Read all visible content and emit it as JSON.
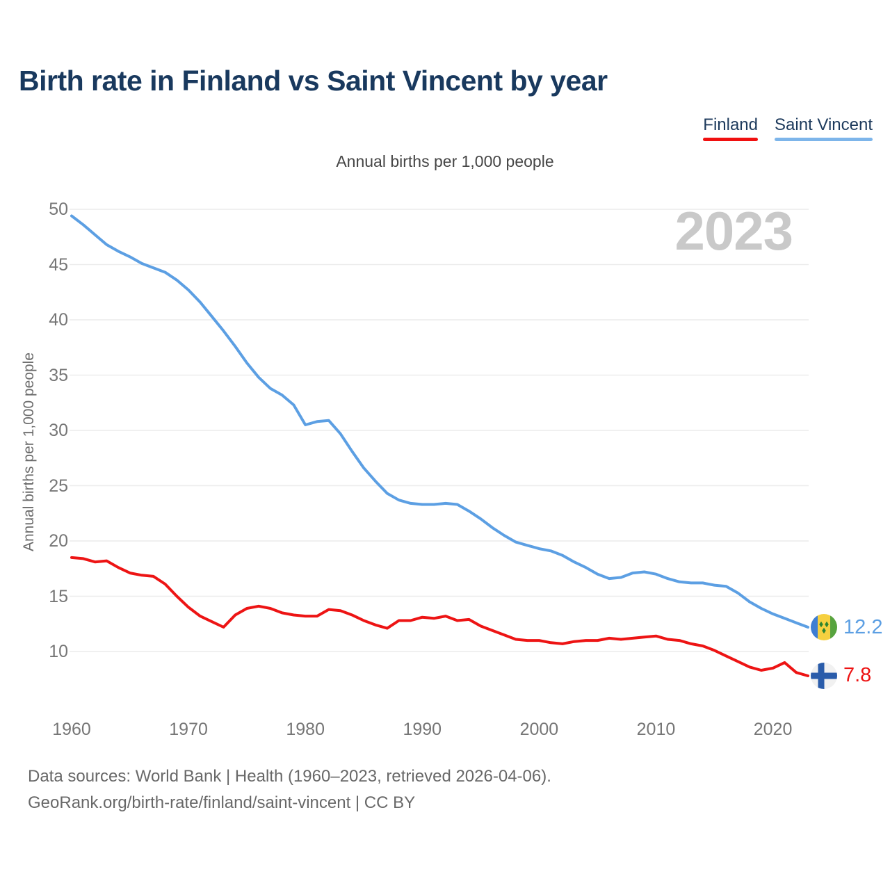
{
  "header": {
    "title": "Birth rate in Finland vs Saint Vincent by year",
    "legend": [
      {
        "label": "Finland",
        "color": "#f01010"
      },
      {
        "label": "Saint Vincent",
        "color": "#7db5ea"
      }
    ]
  },
  "watermark": "2023",
  "chart_data": {
    "type": "line",
    "title": "Annual births per 1,000 people",
    "ylabel": "Annual births per 1,000 people",
    "xlabel": "",
    "grid": "horizontal-only",
    "legend_position": "top-right",
    "ylim": [
      7.5,
      50
    ],
    "y_ticks": [
      10,
      15,
      20,
      25,
      30,
      35,
      40,
      45,
      50
    ],
    "x_ticks": [
      1960,
      1970,
      1980,
      1990,
      2000,
      2010,
      2020
    ],
    "x": [
      1960,
      1961,
      1962,
      1963,
      1964,
      1965,
      1966,
      1967,
      1968,
      1969,
      1970,
      1971,
      1972,
      1973,
      1974,
      1975,
      1976,
      1977,
      1978,
      1979,
      1980,
      1981,
      1982,
      1983,
      1984,
      1985,
      1986,
      1987,
      1988,
      1989,
      1990,
      1991,
      1992,
      1993,
      1994,
      1995,
      1996,
      1997,
      1998,
      1999,
      2000,
      2001,
      2002,
      2003,
      2004,
      2005,
      2006,
      2007,
      2008,
      2009,
      2010,
      2011,
      2012,
      2013,
      2014,
      2015,
      2016,
      2017,
      2018,
      2019,
      2020,
      2021,
      2022,
      2023
    ],
    "series": [
      {
        "name": "Saint Vincent",
        "color": "#5c9fe3",
        "end_label": "12.2",
        "flag_icon": "saint-vincent-flag-icon",
        "values": [
          49.4,
          48.6,
          47.7,
          46.8,
          46.2,
          45.7,
          45.1,
          44.7,
          44.3,
          43.6,
          42.7,
          41.6,
          40.3,
          39.0,
          37.6,
          36.1,
          34.8,
          33.8,
          33.2,
          32.3,
          30.5,
          30.8,
          30.9,
          29.7,
          28.1,
          26.6,
          25.4,
          24.3,
          23.7,
          23.4,
          23.3,
          23.3,
          23.4,
          23.3,
          22.7,
          22.0,
          21.2,
          20.5,
          19.9,
          19.6,
          19.3,
          19.1,
          18.7,
          18.1,
          17.6,
          17.0,
          16.6,
          16.7,
          17.1,
          17.2,
          17.0,
          16.6,
          16.3,
          16.2,
          16.2,
          16.0,
          15.9,
          15.3,
          14.5,
          13.9,
          13.4,
          13.0,
          12.6,
          12.2
        ]
      },
      {
        "name": "Finland",
        "color": "#ed1414",
        "end_label": "7.8",
        "flag_icon": "finland-flag-icon",
        "values": [
          18.5,
          18.4,
          18.1,
          18.2,
          17.6,
          17.1,
          16.9,
          16.8,
          16.1,
          15.0,
          14.0,
          13.2,
          12.7,
          12.2,
          13.3,
          13.9,
          14.1,
          13.9,
          13.5,
          13.3,
          13.2,
          13.2,
          13.8,
          13.7,
          13.3,
          12.8,
          12.4,
          12.1,
          12.8,
          12.8,
          13.1,
          13.0,
          13.2,
          12.8,
          12.9,
          12.3,
          11.9,
          11.5,
          11.1,
          11.0,
          11.0,
          10.8,
          10.7,
          10.9,
          11.0,
          11.0,
          11.2,
          11.1,
          11.2,
          11.3,
          11.4,
          11.1,
          11.0,
          10.7,
          10.5,
          10.1,
          9.6,
          9.1,
          8.6,
          8.3,
          8.5,
          9.0,
          8.1,
          7.8
        ]
      }
    ]
  },
  "footer": {
    "line1": "Data sources: World Bank | Health (1960–2023, retrieved 2026-04-06).",
    "line2": "GeoRank.org/birth-rate/finland/saint-vincent | CC BY"
  }
}
